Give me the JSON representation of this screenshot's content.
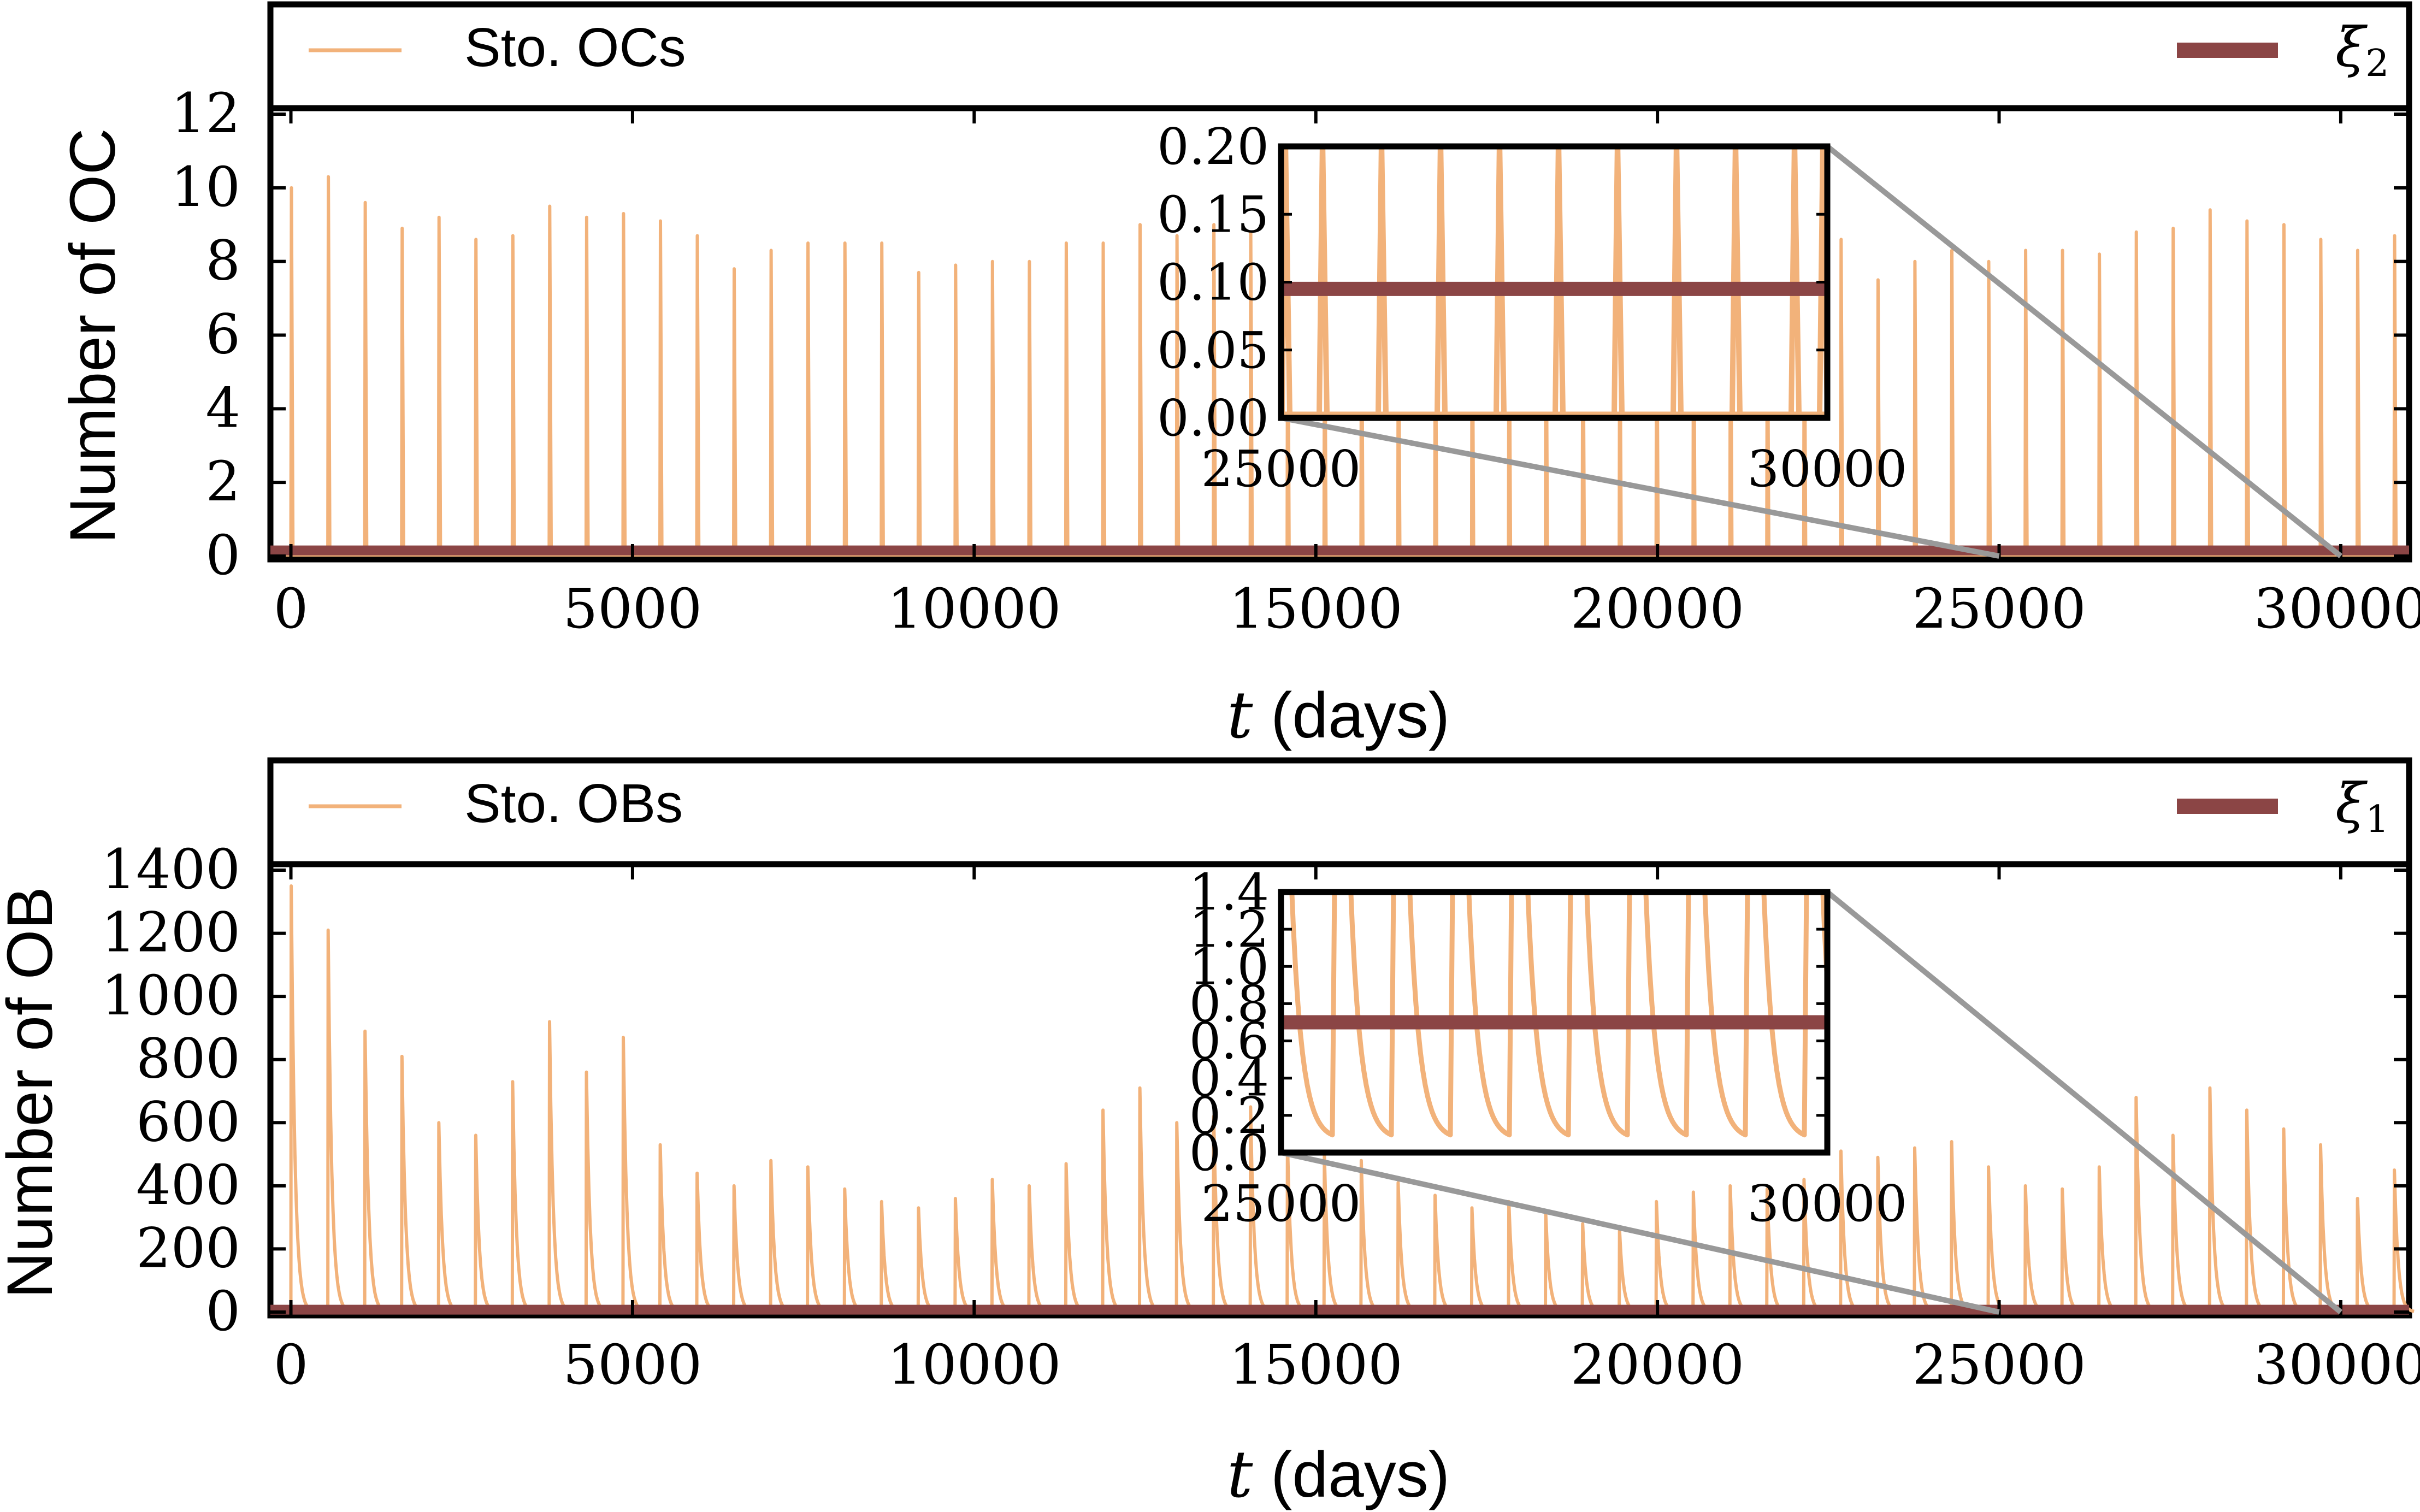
{
  "chart_data": [
    {
      "type": "line",
      "panel": "top",
      "xlabel_italic": "t",
      "xlabel_rest": " (days)",
      "ylabel": "Number of OC",
      "xlim": [
        -300,
        31000
      ],
      "ylim": [
        0,
        12
      ],
      "legend_placement": "top (band above plot)",
      "xticks": [
        0,
        5000,
        10000,
        15000,
        20000,
        25000,
        30000
      ],
      "xtick_labels": [
        "0",
        "5000",
        "10000",
        "15000",
        "20000",
        "25000",
        "30000"
      ],
      "yticks": [
        0,
        2,
        4,
        6,
        8,
        10,
        12
      ],
      "ytick_labels": [
        "0",
        "2",
        "4",
        "6",
        "8",
        "10",
        "12"
      ],
      "colors": {
        "stochastic": "#f2b27a",
        "deterministic": "#8b4545",
        "zoom_lines": "#999999"
      },
      "series": [
        {
          "name": "Sto. OCs",
          "style": "spikes",
          "spike_times": [
            0,
            540,
            1080,
            1620,
            2160,
            2700,
            3240,
            3780,
            4320,
            4860,
            5400,
            5940,
            6480,
            7020,
            7560,
            8100,
            8640,
            9180,
            9720,
            10260,
            10800,
            11340,
            11880,
            12420,
            12960,
            13500,
            14040,
            14580,
            15120,
            15660,
            16200,
            16740,
            17280,
            17820,
            18360,
            18900,
            19440,
            19980,
            20520,
            21060,
            21600,
            22140,
            22680,
            23220,
            23760,
            24300,
            24840,
            25380,
            25920,
            26460,
            27000,
            27540,
            28080,
            28620,
            29160,
            29700,
            30240,
            30780
          ],
          "spike_heights": [
            10.0,
            10.3,
            9.6,
            8.9,
            9.2,
            8.6,
            8.7,
            9.5,
            9.2,
            9.3,
            9.1,
            8.7,
            7.8,
            8.3,
            8.5,
            8.5,
            8.5,
            7.7,
            7.9,
            8.0,
            8.0,
            8.5,
            8.5,
            9.0,
            8.7,
            9.0,
            8.8,
            9.0,
            8.5,
            8.6,
            8.3,
            8.2,
            8.0,
            8.0,
            8.3,
            8.1,
            7.9,
            8.3,
            8.4,
            8.6,
            7.9,
            8.1,
            8.6,
            7.5,
            8.0,
            8.3,
            8.0,
            8.3,
            8.3,
            8.2,
            8.8,
            8.9,
            9.4,
            9.1,
            9.0,
            8.6,
            8.3,
            8.7
          ],
          "baseline": 0.0
        },
        {
          "name": "ξ₂",
          "name_base": "ξ",
          "name_sub": "2",
          "style": "constant",
          "value": 0.095
        }
      ],
      "inset": {
        "xlim": [
          25000,
          30000
        ],
        "ylim": [
          0,
          0.2
        ],
        "xticks": [
          25000,
          30000
        ],
        "xtick_labels": [
          "25000",
          "30000"
        ],
        "yticks": [
          0,
          0.05,
          0.1,
          0.15,
          0.2
        ],
        "ytick_labels": [
          "0.00",
          "0.05",
          "0.10",
          "0.15",
          "0.20"
        ],
        "spike_times": [
          25380,
          25920,
          26460,
          27000,
          27540,
          28080,
          28620,
          29160,
          29700
        ],
        "baseline": 0.003,
        "deterministic_value": 0.095
      }
    },
    {
      "type": "line",
      "panel": "bottom",
      "xlabel_italic": "t",
      "xlabel_rest": " (days)",
      "ylabel": "Number of OB",
      "xlim": [
        -300,
        31000
      ],
      "ylim": [
        0,
        1400
      ],
      "legend_placement": "top (band above plot)",
      "xticks": [
        0,
        5000,
        10000,
        15000,
        20000,
        25000,
        30000
      ],
      "xtick_labels": [
        "0",
        "5000",
        "10000",
        "15000",
        "20000",
        "25000",
        "30000"
      ],
      "yticks": [
        0,
        200,
        400,
        600,
        800,
        1000,
        1200,
        1400
      ],
      "ytick_labels": [
        "0",
        "200",
        "400",
        "600",
        "800",
        "1000",
        "1200",
        "1400"
      ],
      "colors": {
        "stochastic": "#f2b27a",
        "deterministic": "#8b4545",
        "zoom_lines": "#999999"
      },
      "series": [
        {
          "name": "Sto. OBs",
          "style": "decaying-spikes",
          "spike_times": [
            0,
            540,
            1080,
            1620,
            2160,
            2700,
            3240,
            3780,
            4320,
            4860,
            5400,
            5940,
            6480,
            7020,
            7560,
            8100,
            8640,
            9180,
            9720,
            10260,
            10800,
            11340,
            11880,
            12420,
            12960,
            13500,
            14040,
            14580,
            15120,
            15660,
            16200,
            16740,
            17280,
            17820,
            18360,
            18900,
            19440,
            19980,
            20520,
            21060,
            21600,
            22140,
            22680,
            23220,
            23760,
            24300,
            24840,
            25380,
            25920,
            26460,
            27000,
            27540,
            28080,
            28620,
            29160,
            29700,
            30240,
            30780
          ],
          "spike_heights": [
            1350,
            1210,
            890,
            810,
            600,
            560,
            730,
            920,
            760,
            870,
            530,
            440,
            400,
            480,
            460,
            390,
            350,
            330,
            360,
            420,
            400,
            470,
            640,
            710,
            600,
            620,
            650,
            540,
            500,
            480,
            410,
            370,
            330,
            350,
            310,
            280,
            260,
            350,
            380,
            400,
            390,
            420,
            510,
            490,
            520,
            540,
            460,
            400,
            390,
            460,
            680,
            560,
            710,
            640,
            580,
            530,
            360,
            450
          ],
          "decay_days": 90,
          "baseline": 0
        },
        {
          "name": "ξ₁",
          "name_base": "ξ",
          "name_sub": "1",
          "style": "constant",
          "value": 0.7
        }
      ],
      "inset": {
        "xlim": [
          25000,
          30000
        ],
        "ylim": [
          0,
          1.4
        ],
        "xticks": [
          25000,
          30000
        ],
        "xtick_labels": [
          "25000",
          "30000"
        ],
        "yticks": [
          0,
          0.2,
          0.4,
          0.6,
          0.8,
          1.0,
          1.2,
          1.4
        ],
        "ytick_labels": [
          "0.0",
          "0.2",
          "0.4",
          "0.6",
          "0.8",
          "1.0",
          "1.2",
          "1.4"
        ],
        "spike_times": [
          25000,
          25540,
          26080,
          26620,
          27160,
          27700,
          28240,
          28780,
          29320,
          29860
        ],
        "trough_value": 0.07,
        "deterministic_value": 0.7
      }
    }
  ]
}
